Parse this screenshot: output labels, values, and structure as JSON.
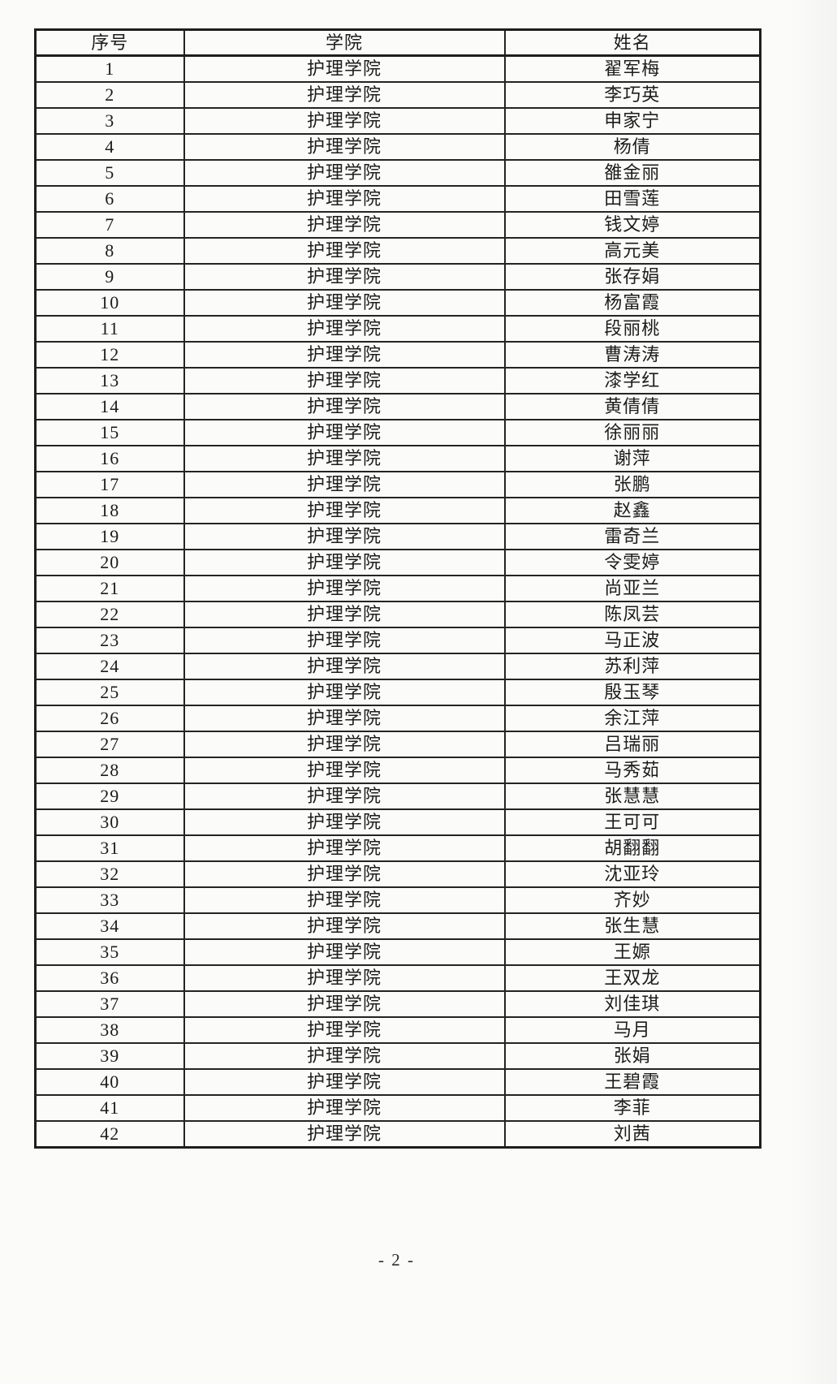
{
  "page": {
    "background_color": "#fbfbfa",
    "border_color": "#242424",
    "text_color": "#1c1c1c",
    "footer_page_label": "- 2 -"
  },
  "table": {
    "headers": [
      "序号",
      "学院",
      "姓名"
    ],
    "rows": [
      {
        "no": "1",
        "college": "护理学院",
        "name": "翟军梅"
      },
      {
        "no": "2",
        "college": "护理学院",
        "name": "李巧英"
      },
      {
        "no": "3",
        "college": "护理学院",
        "name": "申家宁"
      },
      {
        "no": "4",
        "college": "护理学院",
        "name": "杨倩"
      },
      {
        "no": "5",
        "college": "护理学院",
        "name": "雒金丽"
      },
      {
        "no": "6",
        "college": "护理学院",
        "name": "田雪莲"
      },
      {
        "no": "7",
        "college": "护理学院",
        "name": "钱文婷"
      },
      {
        "no": "8",
        "college": "护理学院",
        "name": "高元美"
      },
      {
        "no": "9",
        "college": "护理学院",
        "name": "张存娟"
      },
      {
        "no": "10",
        "college": "护理学院",
        "name": "杨富霞"
      },
      {
        "no": "11",
        "college": "护理学院",
        "name": "段丽桃"
      },
      {
        "no": "12",
        "college": "护理学院",
        "name": "曹涛涛"
      },
      {
        "no": "13",
        "college": "护理学院",
        "name": "漆学红"
      },
      {
        "no": "14",
        "college": "护理学院",
        "name": "黄倩倩"
      },
      {
        "no": "15",
        "college": "护理学院",
        "name": "徐丽丽"
      },
      {
        "no": "16",
        "college": "护理学院",
        "name": "谢萍"
      },
      {
        "no": "17",
        "college": "护理学院",
        "name": "张鹏"
      },
      {
        "no": "18",
        "college": "护理学院",
        "name": "赵鑫"
      },
      {
        "no": "19",
        "college": "护理学院",
        "name": "雷奇兰"
      },
      {
        "no": "20",
        "college": "护理学院",
        "name": "令雯婷"
      },
      {
        "no": "21",
        "college": "护理学院",
        "name": "尚亚兰"
      },
      {
        "no": "22",
        "college": "护理学院",
        "name": "陈凤芸"
      },
      {
        "no": "23",
        "college": "护理学院",
        "name": "马正波"
      },
      {
        "no": "24",
        "college": "护理学院",
        "name": "苏利萍"
      },
      {
        "no": "25",
        "college": "护理学院",
        "name": "殷玉琴"
      },
      {
        "no": "26",
        "college": "护理学院",
        "name": "余江萍"
      },
      {
        "no": "27",
        "college": "护理学院",
        "name": "吕瑞丽"
      },
      {
        "no": "28",
        "college": "护理学院",
        "name": "马秀茹"
      },
      {
        "no": "29",
        "college": "护理学院",
        "name": "张慧慧"
      },
      {
        "no": "30",
        "college": "护理学院",
        "name": "王可可"
      },
      {
        "no": "31",
        "college": "护理学院",
        "name": "胡翻翻"
      },
      {
        "no": "32",
        "college": "护理学院",
        "name": "沈亚玲"
      },
      {
        "no": "33",
        "college": "护理学院",
        "name": "齐妙"
      },
      {
        "no": "34",
        "college": "护理学院",
        "name": "张生慧"
      },
      {
        "no": "35",
        "college": "护理学院",
        "name": "王嫄"
      },
      {
        "no": "36",
        "college": "护理学院",
        "name": "王双龙"
      },
      {
        "no": "37",
        "college": "护理学院",
        "name": "刘佳琪"
      },
      {
        "no": "38",
        "college": "护理学院",
        "name": "马月"
      },
      {
        "no": "39",
        "college": "护理学院",
        "name": "张娟"
      },
      {
        "no": "40",
        "college": "护理学院",
        "name": "王碧霞"
      },
      {
        "no": "41",
        "college": "护理学院",
        "name": "李菲"
      },
      {
        "no": "42",
        "college": "护理学院",
        "name": "刘茜"
      }
    ]
  }
}
